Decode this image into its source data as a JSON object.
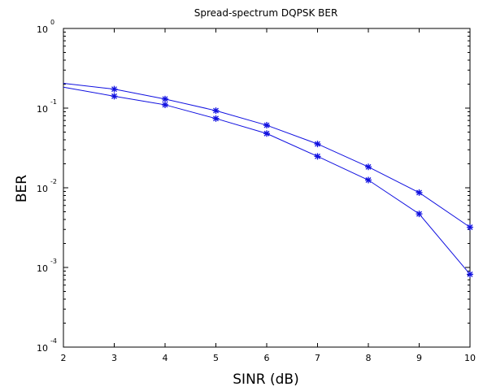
{
  "chart_data": {
    "type": "line",
    "title": "Spread-spectrum DQPSK BER",
    "xlabel": "SINR (dB)",
    "ylabel": "BER",
    "x": [
      2,
      3,
      4,
      5,
      6,
      7,
      8,
      9,
      10
    ],
    "xlim": [
      2,
      10
    ],
    "ylim": [
      0.0001,
      1
    ],
    "yscale": "log",
    "xticks": [
      "2",
      "3",
      "4",
      "5",
      "6",
      "7",
      "8",
      "9",
      "10"
    ],
    "yticks": [
      {
        "base": "10",
        "exp": "0"
      },
      {
        "base": "10",
        "exp": "-1"
      },
      {
        "base": "10",
        "exp": "-2"
      },
      {
        "base": "10",
        "exp": "-3"
      },
      {
        "base": "10",
        "exp": "-4"
      }
    ],
    "grid": false,
    "marker": "*",
    "color": "#1010e0",
    "series": [
      {
        "values": [
          0.205,
          0.173,
          0.13,
          0.093,
          0.061,
          0.0355,
          0.0183,
          0.0087,
          0.0032
        ]
      },
      {
        "values": [
          0.183,
          0.141,
          0.11,
          0.074,
          0.048,
          0.0248,
          0.0125,
          0.0047,
          0.00082
        ]
      }
    ]
  }
}
